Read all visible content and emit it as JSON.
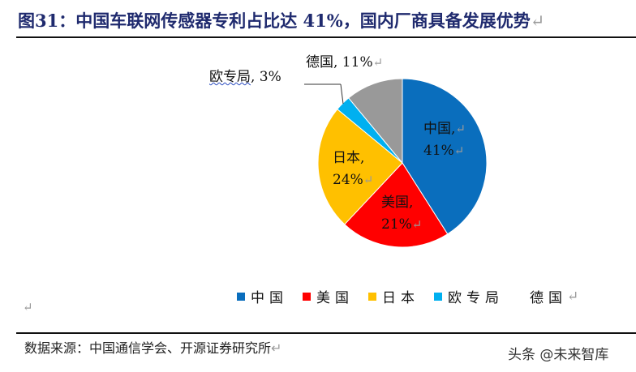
{
  "header": {
    "title": "图31：中国车联网传感器专利占比达 41%，国内厂商具备发展优势",
    "return_mark": "↵"
  },
  "chart_data": {
    "type": "pie",
    "title": "中国车联网传感器专利占比达 41%，国内厂商具备发展优势",
    "categories": [
      "中国",
      "美国",
      "日本",
      "欧专局",
      "德国"
    ],
    "values": [
      41,
      21,
      24,
      3,
      11
    ],
    "unit": "%",
    "colors": [
      "#0a6ebd",
      "#ff0000",
      "#ffc000",
      "#00b0f0",
      "#999999"
    ],
    "legend_position": "bottom",
    "data_labels": [
      "中国, 41%",
      "美国, 21%",
      "日本, 24%",
      "欧专局, 3%",
      "德国, 11%"
    ]
  },
  "labels": {
    "china": {
      "name": "中国,",
      "pct": "41%"
    },
    "usa": {
      "name": "美国,",
      "pct": "21%"
    },
    "japan": {
      "name": "日本,",
      "pct": "24%"
    },
    "epo": {
      "name": "欧专局",
      "pct": ", 3%"
    },
    "germany": {
      "text": "德国, 11%"
    }
  },
  "legend": {
    "items": [
      {
        "label": "中国",
        "color": "#0a6ebd"
      },
      {
        "label": "美国",
        "color": "#ff0000"
      },
      {
        "label": "日本",
        "color": "#ffc000"
      },
      {
        "label": "欧专局",
        "color": "#00b0f0"
      },
      {
        "label": "德国",
        "color": "#999999"
      }
    ]
  },
  "footer": {
    "source": "数据来源：中国通信学会、开源证券研究所",
    "watermark": "头条 @未来智库"
  }
}
